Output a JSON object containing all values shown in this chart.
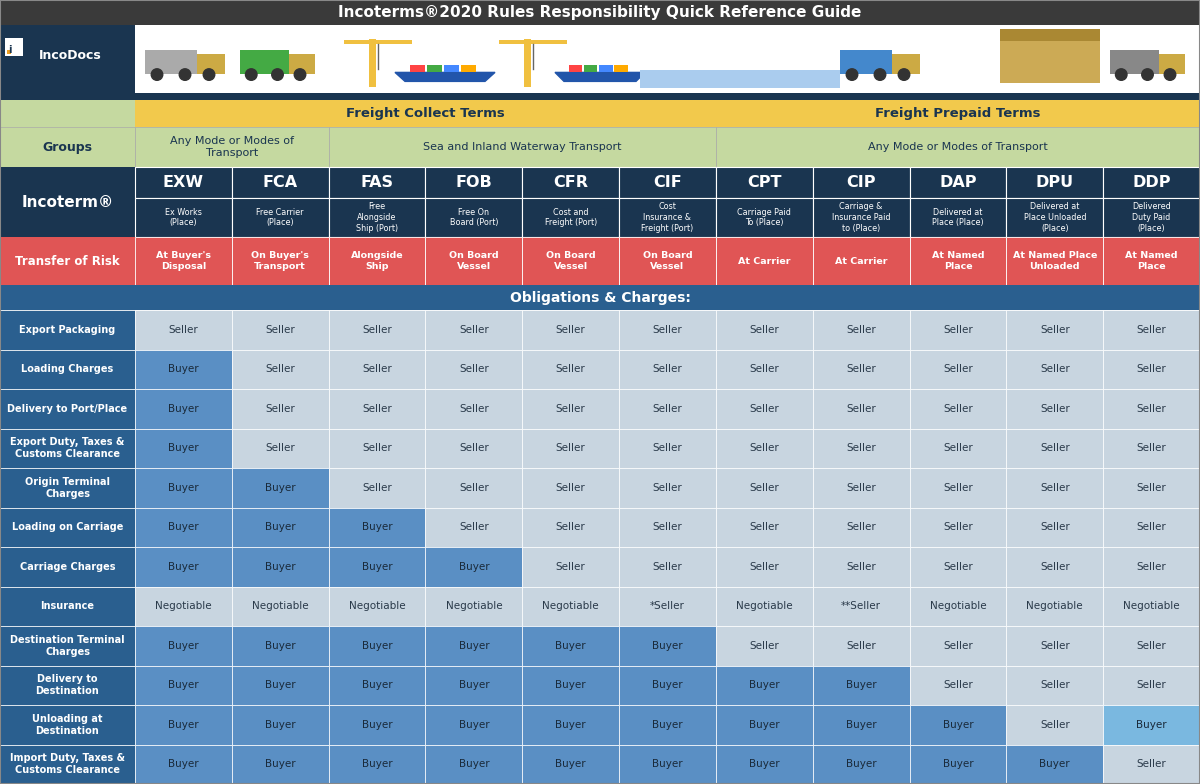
{
  "title": "Incoterms®2020 Rules Responsibility Quick Reference Guide",
  "incoterms": [
    "EXW",
    "FCA",
    "FAS",
    "FOB",
    "CFR",
    "CIF",
    "CPT",
    "CIP",
    "DAP",
    "DPU",
    "DDP"
  ],
  "incoterm_full": [
    "Ex Works\n(Place)",
    "Free Carrier\n(Place)",
    "Free\nAlongside\nShip (Port)",
    "Free On\nBoard (Port)",
    "Cost and\nFreight (Port)",
    "Cost\nInsurance &\nFreight (Port)",
    "Carriage Paid\nTo (Place)",
    "Carriage &\nInsurance Paid\nto (Place)",
    "Delivered at\nPlace (Place)",
    "Delivered at\nPlace Unloaded\n(Place)",
    "Delivered\nDuty Paid\n(Place)"
  ],
  "transfer_of_risk": [
    "At Buyer's\nDisposal",
    "On Buyer's\nTransport",
    "Alongside\nShip",
    "On Board\nVessel",
    "On Board\nVessel",
    "On Board\nVessel",
    "At Carrier",
    "At Carrier",
    "At Named\nPlace",
    "At Named Place\nUnloaded",
    "At Named\nPlace"
  ],
  "freight_collect_label": "Freight Collect Terms",
  "freight_prepaid_label": "Freight Prepaid Terms",
  "groups_label": "Groups",
  "groups_col1": "Any Mode or Modes of\nTransport",
  "groups_col2": "Sea and Inland Waterway Transport",
  "groups_col3": "Any Mode or Modes of Transport",
  "incoterm_label": "Incoterm®",
  "risk_label": "Transfer of Risk",
  "obligations_label": "Obligations & Charges:",
  "row_labels": [
    "Export Packaging",
    "Loading Charges",
    "Delivery to Port/Place",
    "Export Duty, Taxes &\nCustoms Clearance",
    "Origin Terminal\nCharges",
    "Loading on Carriage",
    "Carriage Charges",
    "Insurance",
    "Destination Terminal\nCharges",
    "Delivery to\nDestination",
    "Unloading at\nDestination",
    "Import Duty, Taxes &\nCustoms Clearance"
  ],
  "table_data": [
    [
      "Seller",
      "Seller",
      "Seller",
      "Seller",
      "Seller",
      "Seller",
      "Seller",
      "Seller",
      "Seller",
      "Seller",
      "Seller"
    ],
    [
      "Buyer",
      "Seller",
      "Seller",
      "Seller",
      "Seller",
      "Seller",
      "Seller",
      "Seller",
      "Seller",
      "Seller",
      "Seller"
    ],
    [
      "Buyer",
      "Seller",
      "Seller",
      "Seller",
      "Seller",
      "Seller",
      "Seller",
      "Seller",
      "Seller",
      "Seller",
      "Seller"
    ],
    [
      "Buyer",
      "Seller",
      "Seller",
      "Seller",
      "Seller",
      "Seller",
      "Seller",
      "Seller",
      "Seller",
      "Seller",
      "Seller"
    ],
    [
      "Buyer",
      "Buyer",
      "Seller",
      "Seller",
      "Seller",
      "Seller",
      "Seller",
      "Seller",
      "Seller",
      "Seller",
      "Seller"
    ],
    [
      "Buyer",
      "Buyer",
      "Buyer",
      "Seller",
      "Seller",
      "Seller",
      "Seller",
      "Seller",
      "Seller",
      "Seller",
      "Seller"
    ],
    [
      "Buyer",
      "Buyer",
      "Buyer",
      "Buyer",
      "Seller",
      "Seller",
      "Seller",
      "Seller",
      "Seller",
      "Seller",
      "Seller"
    ],
    [
      "Negotiable",
      "Negotiable",
      "Negotiable",
      "Negotiable",
      "Negotiable",
      "*Seller",
      "Negotiable",
      "**Seller",
      "Negotiable",
      "Negotiable",
      "Negotiable"
    ],
    [
      "Buyer",
      "Buyer",
      "Buyer",
      "Buyer",
      "Buyer",
      "Buyer",
      "Seller",
      "Seller",
      "Seller",
      "Seller",
      "Seller"
    ],
    [
      "Buyer",
      "Buyer",
      "Buyer",
      "Buyer",
      "Buyer",
      "Buyer",
      "Buyer",
      "Buyer",
      "Seller",
      "Seller",
      "Seller"
    ],
    [
      "Buyer",
      "Buyer",
      "Buyer",
      "Buyer",
      "Buyer",
      "Buyer",
      "Buyer",
      "Buyer",
      "Buyer",
      "Seller",
      "Buyer"
    ],
    [
      "Buyer",
      "Buyer",
      "Buyer",
      "Buyer",
      "Buyer",
      "Buyer",
      "Buyer",
      "Buyer",
      "Buyer",
      "Buyer",
      "Seller"
    ]
  ],
  "c_title_bg": "#3a3a3a",
  "c_title_fg": "#ffffff",
  "c_logo_bg": "#1a3550",
  "c_logo_fg": "#ffffff",
  "c_image_bg": "#ffffff",
  "c_navy_bar": "#1a3550",
  "c_freight_bg": "#f2c94c",
  "c_freight_fg": "#1a3550",
  "c_groups_bg": "#c5d9a0",
  "c_groups_fg": "#1a3550",
  "c_incoterm_bg": "#1a3550",
  "c_incoterm_fg": "#ffffff",
  "c_risk_bg": "#e05555",
  "c_risk_fg": "#ffffff",
  "c_obl_bg": "#2a5f8f",
  "c_obl_fg": "#ffffff",
  "c_rowlabel_bg": "#2a5f8f",
  "c_rowlabel_fg": "#ffffff",
  "c_buyer_bg": "#5a8fc4",
  "c_buyer_fg": "#1a2a3a",
  "c_seller_bg": "#c8d5e0",
  "c_seller_fg": "#2a3a4a",
  "c_neg_bg": "#c8d5e0",
  "c_neg_fg": "#2a3a4a",
  "c_highlight_buyer": "#7ab0d8",
  "c_white": "#ffffff",
  "c_grid": "#ffffff"
}
